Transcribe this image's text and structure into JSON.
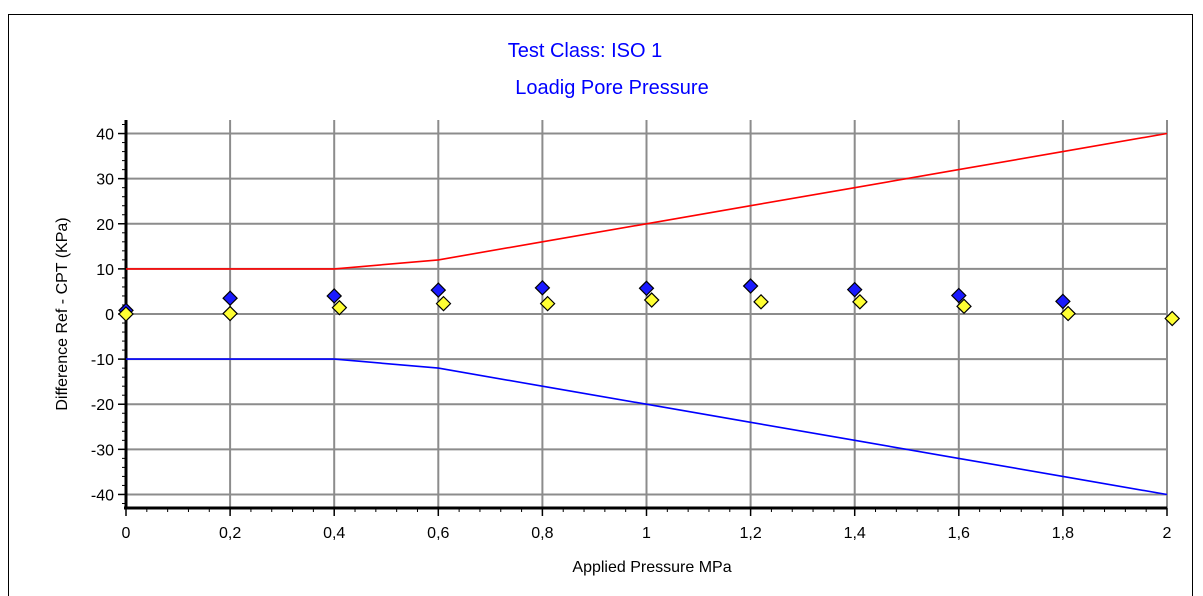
{
  "chart_data": {
    "type": "line",
    "title": "Test Class: ISO 1",
    "subtitle": "Loadig Pore Pressure",
    "xlabel": "Applied Pressure MPa",
    "ylabel": "Difference Ref - CPT (KPa)",
    "xlim": [
      0,
      2
    ],
    "ylim": [
      -43,
      43
    ],
    "x_ticks": [
      "0",
      "0,2",
      "0,4",
      "0,6",
      "0,8",
      "1",
      "1,2",
      "1,4",
      "1,6",
      "1,8",
      "2"
    ],
    "x_tick_values": [
      0,
      0.2,
      0.4,
      0.6,
      0.8,
      1.0,
      1.2,
      1.4,
      1.6,
      1.8,
      2.0
    ],
    "y_ticks": [
      "40",
      "30",
      "20",
      "10",
      "0",
      "-10",
      "-20",
      "-30",
      "-40"
    ],
    "y_tick_values": [
      40,
      30,
      20,
      10,
      0,
      -10,
      -20,
      -30,
      -40
    ],
    "grid": true,
    "series": [
      {
        "kind": "line",
        "color": "#ff0000",
        "points": [
          [
            0,
            10
          ],
          [
            0.4,
            10
          ],
          [
            0.6,
            12
          ],
          [
            0.8,
            16
          ],
          [
            1.0,
            20
          ],
          [
            1.2,
            24
          ],
          [
            1.4,
            28
          ],
          [
            1.6,
            32
          ],
          [
            1.8,
            36
          ],
          [
            2.0,
            40
          ]
        ]
      },
      {
        "kind": "line",
        "color": "#0000ff",
        "points": [
          [
            0,
            -10
          ],
          [
            0.4,
            -10
          ],
          [
            0.6,
            -12
          ],
          [
            0.8,
            -16
          ],
          [
            1.0,
            -20
          ],
          [
            1.2,
            -24
          ],
          [
            1.4,
            -28
          ],
          [
            1.6,
            -32
          ],
          [
            1.8,
            -36
          ],
          [
            2.0,
            -40
          ]
        ]
      },
      {
        "kind": "scatter",
        "marker": "diamond",
        "color": "#1a1aff",
        "points": [
          [
            0,
            0.8
          ],
          [
            0.2,
            3.5
          ],
          [
            0.4,
            4.0
          ],
          [
            0.6,
            5.3
          ],
          [
            0.8,
            5.8
          ],
          [
            1.0,
            5.7
          ],
          [
            1.2,
            6.2
          ],
          [
            1.4,
            5.4
          ],
          [
            1.6,
            4.1
          ],
          [
            1.8,
            2.8
          ]
        ]
      },
      {
        "kind": "scatter",
        "marker": "diamond",
        "color": "#ffff33",
        "points": [
          [
            0,
            0.0
          ],
          [
            0.2,
            0.1
          ],
          [
            0.41,
            1.4
          ],
          [
            0.61,
            2.3
          ],
          [
            0.81,
            2.3
          ],
          [
            1.01,
            3.1
          ],
          [
            1.22,
            2.7
          ],
          [
            1.41,
            2.7
          ],
          [
            1.61,
            1.7
          ],
          [
            1.81,
            0.1
          ],
          [
            2.01,
            -1.0
          ]
        ]
      }
    ]
  }
}
